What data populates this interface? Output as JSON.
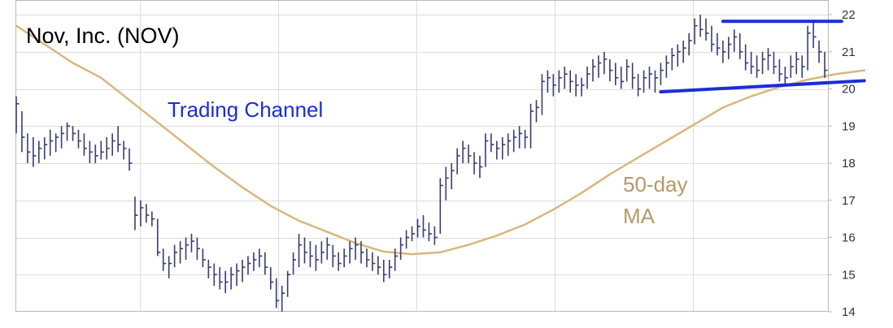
{
  "chart_data": {
    "type": "bar",
    "subtype": "ohlc",
    "title": "Nov, Inc. (NOV)",
    "ylim": [
      14,
      22
    ],
    "y_ticks": [
      14,
      15,
      16,
      17,
      18,
      19,
      20,
      21,
      22
    ],
    "y_axis_side": "right",
    "grid": true,
    "bar_color": "#3a3d6e",
    "ma_color": "#d9b77e",
    "trend_color": "#1a2ed6",
    "series": [
      {
        "values": [
          [
            19.8,
            18.8,
            19.6
          ],
          [
            19.4,
            18.3,
            18.7
          ],
          [
            18.8,
            18.0,
            18.3
          ],
          [
            18.7,
            17.9,
            18.2
          ],
          [
            18.6,
            18.0,
            18.4
          ],
          [
            18.7,
            18.1,
            18.5
          ],
          [
            18.9,
            18.2,
            18.6
          ],
          [
            18.8,
            18.3,
            18.7
          ],
          [
            19.0,
            18.4,
            18.8
          ],
          [
            19.1,
            18.6,
            19.0
          ],
          [
            19.0,
            18.6,
            18.8
          ],
          [
            18.9,
            18.4,
            18.6
          ],
          [
            18.8,
            18.2,
            18.4
          ],
          [
            18.6,
            18.0,
            18.3
          ],
          [
            18.5,
            18.0,
            18.2
          ],
          [
            18.6,
            18.1,
            18.3
          ],
          [
            18.7,
            18.1,
            18.4
          ],
          [
            18.8,
            18.2,
            18.6
          ],
          [
            19.0,
            18.3,
            18.5
          ],
          [
            18.6,
            18.1,
            18.4
          ],
          [
            18.4,
            17.8,
            18.0
          ],
          [
            17.1,
            16.2,
            16.6
          ],
          [
            17.0,
            16.3,
            16.8
          ],
          [
            16.9,
            16.4,
            16.6
          ],
          [
            16.7,
            16.3,
            16.5
          ],
          [
            16.5,
            15.5,
            15.6
          ],
          [
            15.7,
            15.1,
            15.3
          ],
          [
            15.5,
            14.9,
            15.3
          ],
          [
            15.8,
            15.2,
            15.6
          ],
          [
            15.9,
            15.3,
            15.7
          ],
          [
            16.0,
            15.4,
            15.8
          ],
          [
            16.1,
            15.6,
            15.9
          ],
          [
            16.0,
            15.4,
            15.7
          ],
          [
            15.7,
            15.2,
            15.4
          ],
          [
            15.4,
            14.9,
            15.2
          ],
          [
            15.3,
            14.7,
            15.0
          ],
          [
            15.2,
            14.6,
            14.8
          ],
          [
            15.1,
            14.5,
            14.8
          ],
          [
            15.2,
            14.6,
            15.0
          ],
          [
            15.3,
            14.7,
            15.1
          ],
          [
            15.4,
            14.8,
            15.2
          ],
          [
            15.5,
            15.0,
            15.3
          ],
          [
            15.6,
            15.1,
            15.4
          ],
          [
            15.7,
            15.2,
            15.5
          ],
          [
            15.6,
            15.0,
            15.2
          ],
          [
            15.2,
            14.6,
            14.8
          ],
          [
            14.9,
            14.1,
            14.3
          ],
          [
            14.7,
            14.0,
            14.5
          ],
          [
            15.1,
            14.4,
            15.0
          ],
          [
            15.6,
            15.0,
            15.4
          ],
          [
            16.1,
            15.2,
            15.8
          ],
          [
            16.0,
            15.3,
            15.6
          ],
          [
            15.9,
            15.2,
            15.5
          ],
          [
            15.8,
            15.1,
            15.4
          ],
          [
            15.9,
            15.3,
            15.6
          ],
          [
            16.0,
            15.4,
            15.8
          ],
          [
            15.8,
            15.2,
            15.5
          ],
          [
            15.6,
            15.1,
            15.3
          ],
          [
            15.7,
            15.2,
            15.5
          ],
          [
            15.9,
            15.3,
            15.7
          ],
          [
            16.0,
            15.4,
            15.8
          ],
          [
            15.9,
            15.3,
            15.6
          ],
          [
            15.7,
            15.2,
            15.4
          ],
          [
            15.6,
            15.1,
            15.3
          ],
          [
            15.5,
            15.0,
            15.2
          ],
          [
            15.4,
            14.8,
            15.0
          ],
          [
            15.4,
            14.9,
            15.2
          ],
          [
            15.7,
            15.1,
            15.5
          ],
          [
            16.0,
            15.4,
            15.8
          ],
          [
            16.2,
            15.7,
            16.0
          ],
          [
            16.3,
            15.9,
            16.1
          ],
          [
            16.5,
            16.0,
            16.3
          ],
          [
            16.6,
            16.0,
            16.2
          ],
          [
            16.4,
            15.9,
            16.1
          ],
          [
            16.3,
            15.8,
            16.0
          ],
          [
            17.6,
            16.1,
            17.4
          ],
          [
            17.9,
            17.0,
            17.6
          ],
          [
            18.0,
            17.3,
            17.8
          ],
          [
            18.4,
            17.7,
            18.2
          ],
          [
            18.6,
            18.0,
            18.4
          ],
          [
            18.5,
            18.0,
            18.2
          ],
          [
            18.3,
            17.7,
            18.0
          ],
          [
            18.2,
            17.6,
            17.9
          ],
          [
            18.8,
            17.9,
            18.6
          ],
          [
            18.8,
            18.3,
            18.5
          ],
          [
            18.6,
            18.1,
            18.4
          ],
          [
            18.7,
            18.1,
            18.5
          ],
          [
            18.8,
            18.2,
            18.6
          ],
          [
            18.9,
            18.3,
            18.7
          ],
          [
            19.0,
            18.4,
            18.8
          ],
          [
            18.9,
            18.4,
            18.7
          ],
          [
            19.6,
            18.4,
            19.4
          ],
          [
            19.7,
            19.1,
            19.5
          ],
          [
            20.4,
            19.3,
            20.2
          ],
          [
            20.5,
            19.9,
            20.3
          ],
          [
            20.4,
            19.8,
            20.1
          ],
          [
            20.5,
            19.9,
            20.3
          ],
          [
            20.6,
            20.0,
            20.4
          ],
          [
            20.5,
            19.9,
            20.2
          ],
          [
            20.4,
            19.8,
            20.1
          ],
          [
            20.3,
            19.8,
            20.1
          ],
          [
            20.6,
            20.0,
            20.4
          ],
          [
            20.8,
            20.2,
            20.6
          ],
          [
            20.9,
            20.3,
            20.7
          ],
          [
            21.0,
            20.4,
            20.8
          ],
          [
            20.8,
            20.2,
            20.5
          ],
          [
            20.7,
            20.1,
            20.3
          ],
          [
            20.6,
            20.0,
            20.2
          ],
          [
            20.8,
            20.2,
            20.6
          ],
          [
            20.7,
            20.0,
            20.3
          ],
          [
            20.4,
            19.8,
            20.0
          ],
          [
            20.5,
            19.9,
            20.3
          ],
          [
            20.6,
            20.0,
            20.4
          ],
          [
            20.5,
            19.9,
            20.3
          ],
          [
            20.7,
            20.1,
            20.5
          ],
          [
            20.9,
            20.3,
            20.7
          ],
          [
            21.1,
            20.5,
            20.9
          ],
          [
            21.2,
            20.6,
            21.0
          ],
          [
            21.3,
            20.7,
            21.1
          ],
          [
            21.5,
            20.9,
            21.3
          ],
          [
            21.9,
            21.2,
            21.7
          ],
          [
            22.0,
            21.4,
            21.6
          ],
          [
            21.9,
            21.3,
            21.5
          ],
          [
            21.7,
            21.0,
            21.2
          ],
          [
            21.5,
            20.9,
            21.1
          ],
          [
            21.3,
            20.7,
            21.0
          ],
          [
            21.4,
            20.8,
            21.2
          ],
          [
            21.6,
            21.0,
            21.4
          ],
          [
            21.5,
            20.8,
            21.0
          ],
          [
            21.2,
            20.5,
            20.7
          ],
          [
            21.0,
            20.4,
            20.6
          ],
          [
            20.9,
            20.3,
            20.5
          ],
          [
            21.0,
            20.4,
            20.8
          ],
          [
            21.1,
            20.5,
            20.9
          ],
          [
            21.0,
            20.4,
            20.6
          ],
          [
            20.8,
            20.2,
            20.4
          ],
          [
            20.6,
            20.1,
            20.3
          ],
          [
            20.9,
            20.3,
            20.6
          ],
          [
            21.0,
            20.4,
            20.8
          ],
          [
            20.9,
            20.3,
            20.6
          ],
          [
            21.7,
            20.5,
            21.5
          ],
          [
            21.8,
            21.1,
            21.4
          ],
          [
            21.3,
            20.7,
            21.0
          ],
          [
            21.0,
            20.3,
            20.5
          ]
        ]
      },
      {
        "values": [
          21.7,
          21.2,
          20.7,
          20.3,
          19.7,
          19.1,
          18.5,
          17.9,
          17.35,
          16.85,
          16.45,
          16.15,
          15.85,
          15.62,
          15.55,
          15.6,
          15.8,
          16.05,
          16.35,
          16.75,
          17.2,
          17.7,
          18.15,
          18.6,
          19.05,
          19.5,
          19.8,
          20.05,
          20.25,
          20.4,
          20.5
        ]
      }
    ],
    "ma_x_start": 0,
    "ma_x_end": 150,
    "annotations": [
      {
        "text": "Trading Channel",
        "color": "#1a2ed6"
      },
      {
        "text": "50-day",
        "color": "#b59a6a"
      },
      {
        "text": "MA",
        "color": "#b59a6a"
      }
    ],
    "trend_lines": [
      {
        "role": "resistance",
        "x": [
          125,
          146
        ],
        "y": [
          21.82,
          21.82
        ]
      },
      {
        "role": "support",
        "x": [
          114,
          150
        ],
        "y": [
          19.92,
          20.22
        ]
      }
    ]
  }
}
